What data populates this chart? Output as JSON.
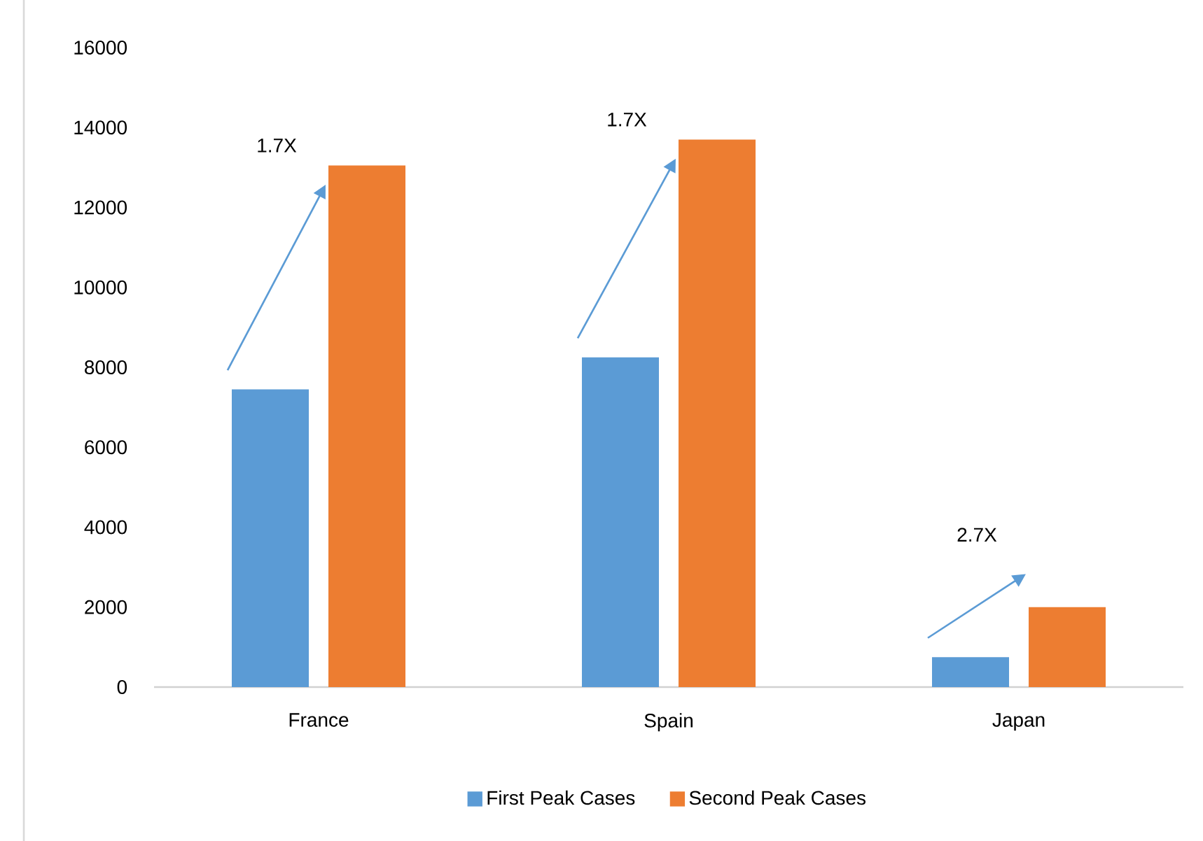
{
  "chart_data": {
    "type": "bar",
    "categories": [
      "France",
      "Spain",
      "Japan"
    ],
    "series": [
      {
        "name": "First Peak Cases",
        "color": "#5b9bd5",
        "values": [
          7450,
          8250,
          750
        ]
      },
      {
        "name": "Second Peak Cases",
        "color": "#ed7d31",
        "values": [
          13050,
          13700,
          2000
        ]
      }
    ],
    "ylim": [
      0,
      16000
    ],
    "yticks": [
      0,
      2000,
      4000,
      6000,
      8000,
      10000,
      12000,
      14000,
      16000
    ],
    "annotations": [
      "1.7X",
      "1.7X",
      "2.7X"
    ],
    "legend": "bottom"
  }
}
